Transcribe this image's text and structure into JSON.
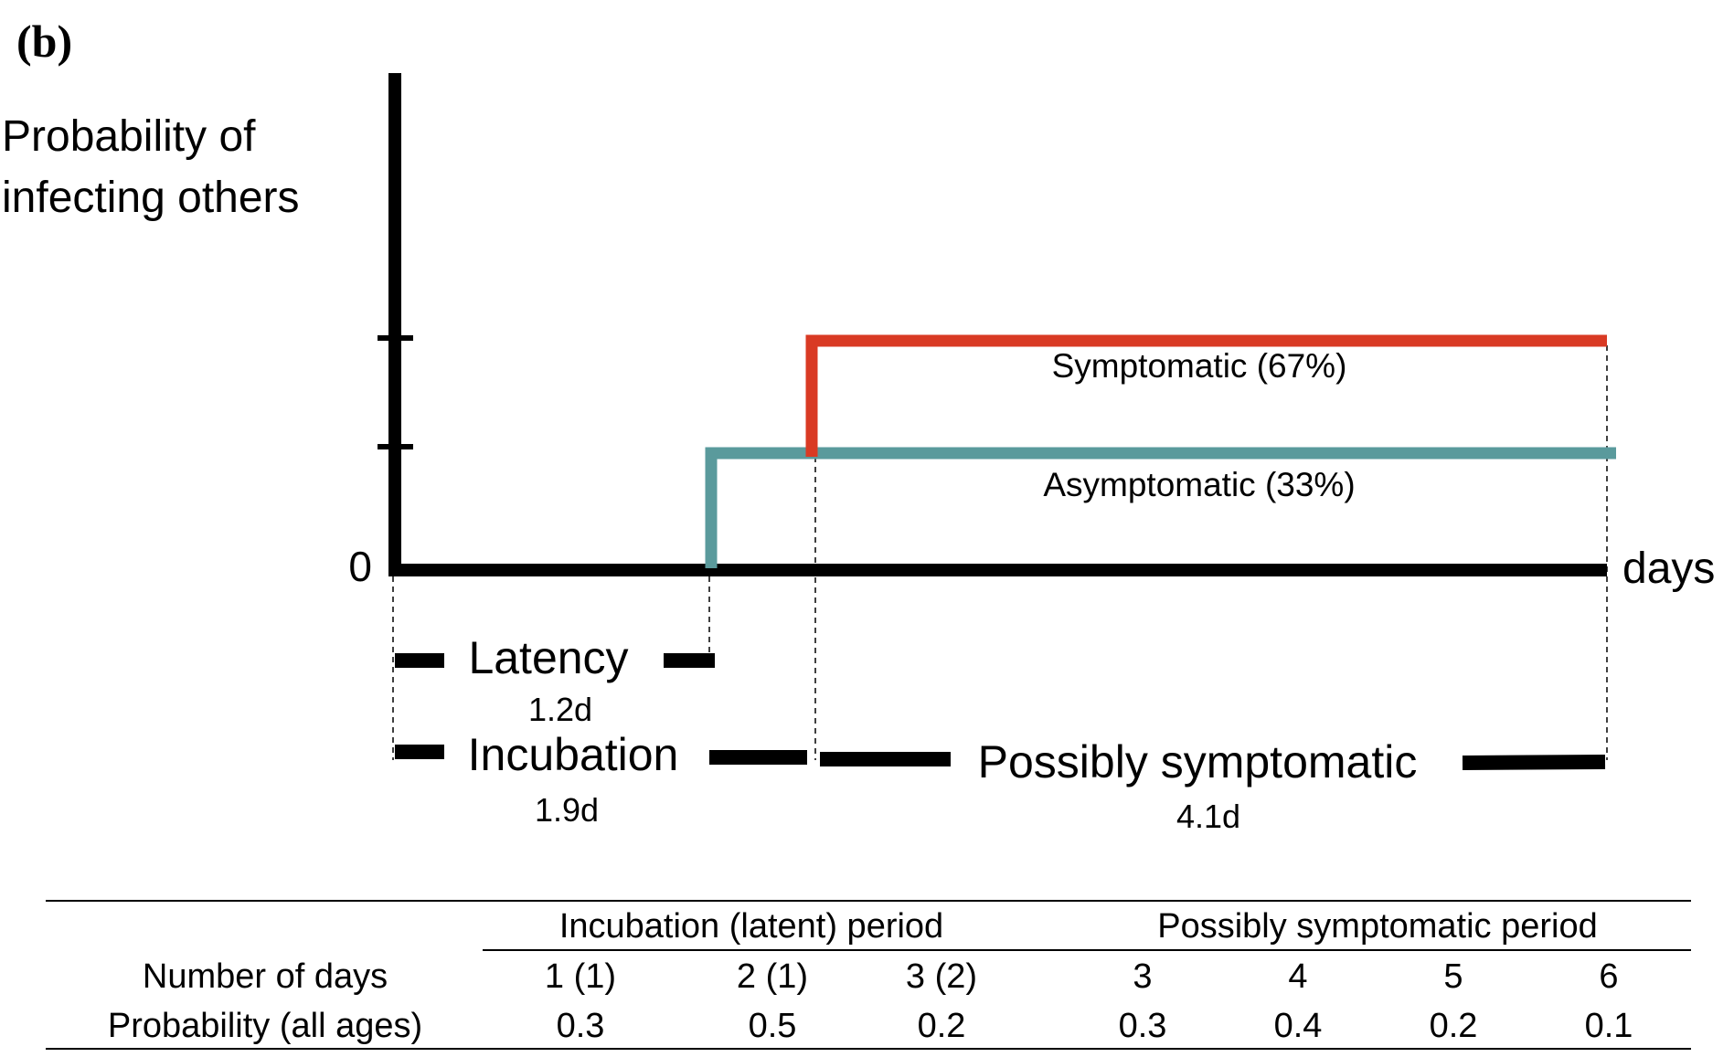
{
  "panel_label": "(b)",
  "y_axis_label_line1": "Probability of",
  "y_axis_label_line2": "infecting others",
  "x_axis_zero": "0",
  "x_axis_label": "days",
  "curves": [
    {
      "label": "Symptomatic (67%)",
      "color": "#d93a24"
    },
    {
      "label": "Asymptomatic (33%)",
      "color": "#5a9a9c"
    }
  ],
  "periods": {
    "latency": {
      "label": "Latency",
      "duration": "1.2d"
    },
    "incubation": {
      "label": "Incubation",
      "duration": "1.9d"
    },
    "possibly_symptomatic": {
      "label": "Possibly symptomatic",
      "duration": "4.1d"
    }
  },
  "table": {
    "group_headers": [
      "Incubation (latent) period",
      "Possibly symptomatic period"
    ],
    "rows": [
      {
        "label": "Number of days",
        "cells": [
          "1 (1)",
          "2 (1)",
          "3 (2)",
          "3",
          "4",
          "5",
          "6"
        ]
      },
      {
        "label": "Probability (all ages)",
        "cells": [
          "0.3",
          "0.5",
          "0.2",
          "0.3",
          "0.4",
          "0.2",
          "0.1"
        ]
      }
    ]
  }
}
